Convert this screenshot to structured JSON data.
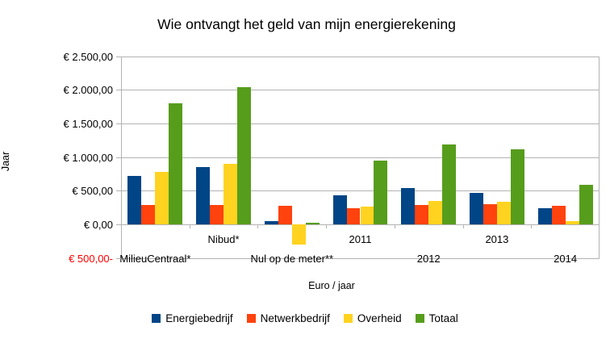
{
  "chart_data": {
    "type": "bar",
    "title": "Wie ontvangt het geld van mijn energierekening",
    "xlabel": "Euro / jaar",
    "ylabel": "Jaar",
    "categories": [
      "MilieuCentraal*",
      "Nibud*",
      "Nul op de meter**",
      "2011",
      "2012",
      "2013",
      "2014"
    ],
    "series": [
      {
        "name": "Energiebedrijf",
        "color": "#004586",
        "values": [
          730,
          860,
          50,
          435,
          545,
          470,
          250
        ]
      },
      {
        "name": "Netwerkbedrijf",
        "color": "#ff420e",
        "values": [
          290,
          290,
          280,
          245,
          290,
          310,
          285
        ]
      },
      {
        "name": "Overheid",
        "color": "#ffd320",
        "values": [
          780,
          900,
          -300,
          270,
          355,
          335,
          50
        ]
      },
      {
        "name": "Totaal",
        "color": "#579d1c",
        "values": [
          1800,
          2050,
          30,
          950,
          1190,
          1120,
          590
        ]
      }
    ],
    "ylim": [
      -500,
      2500
    ],
    "ytick_step": 500,
    "ytick_labels": [
      "€ 2.500,00",
      "€ 2.000,00",
      "€ 1.500,00",
      "€ 1.000,00",
      "€ 500,00",
      "€ 0,00",
      "€ 500,00-"
    ],
    "negative_label_color": "#ff0000",
    "grid": true,
    "gridline_color": "#b3b3b3",
    "legend_position": "bottom"
  }
}
